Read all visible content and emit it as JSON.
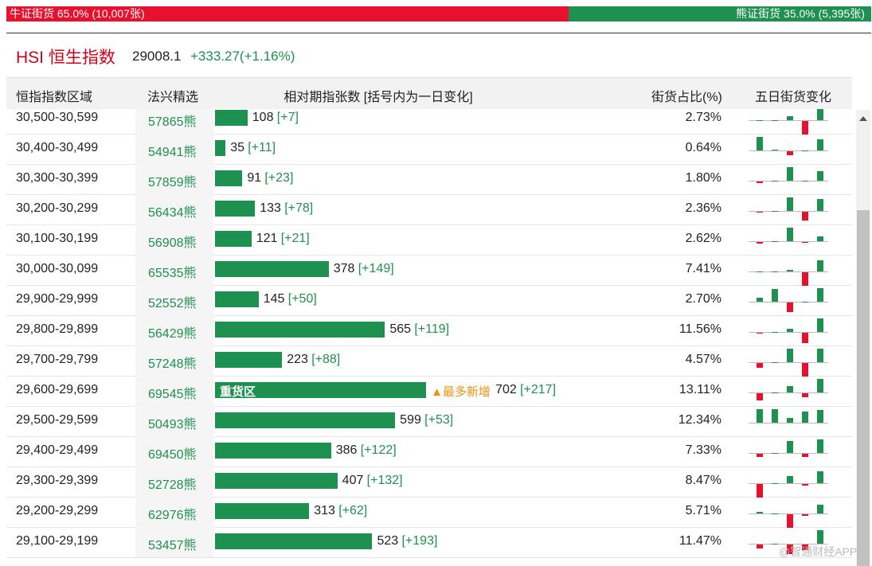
{
  "ratio_bar": {
    "bull": {
      "value": 65.0,
      "label": "牛证街货 65.0% (10,007张)"
    },
    "bear": {
      "value": 35.0,
      "label": "熊证街货 35.0% (5,395张)"
    }
  },
  "index": {
    "name": "HSI 恒生指数",
    "price": "29008.1",
    "change": "+333.27(+1.16%)"
  },
  "table": {
    "headers": [
      "恒指指数区域",
      "法兴精选",
      "相对期指张数 [括号内为一日变化]",
      "街货占比(%)",
      "五日街货变化"
    ],
    "bar_max": 750,
    "rows": [
      {
        "range": "30,500-30,599",
        "pick": "57865熊",
        "count": 108,
        "change": {
          "value": 7,
          "label": "[+7]"
        },
        "share": {
          "value": 2.73,
          "label": "2.73%"
        },
        "trend": [
          0,
          0,
          2,
          -7,
          7
        ]
      },
      {
        "range": "30,400-30,499",
        "pick": "54941熊",
        "count": 35,
        "change": {
          "value": 11,
          "label": "[+11]"
        },
        "share": {
          "value": 0.64,
          "label": "0.64%"
        },
        "trend": [
          13,
          1,
          -4,
          0,
          11
        ]
      },
      {
        "range": "30,300-30,399",
        "pick": "57859熊",
        "count": 91,
        "change": {
          "value": 23,
          "label": "[+23]"
        },
        "share": {
          "value": 1.8,
          "label": "1.80%"
        },
        "trend": [
          -3,
          0,
          33,
          0,
          23
        ]
      },
      {
        "range": "30,200-30,299",
        "pick": "56434熊",
        "count": 133,
        "change": {
          "value": 78,
          "label": "[+78]"
        },
        "share": {
          "value": 2.36,
          "label": "2.36%"
        },
        "trend": [
          -4,
          0,
          89,
          -56,
          78
        ]
      },
      {
        "range": "30,100-30,199",
        "pick": "56908熊",
        "count": 121,
        "change": {
          "value": 21,
          "label": "[+21]"
        },
        "share": {
          "value": 2.62,
          "label": "2.62%"
        },
        "trend": [
          -7,
          0,
          56,
          -4,
          21
        ]
      },
      {
        "range": "30,000-30,099",
        "pick": "65535熊",
        "count": 378,
        "change": {
          "value": 149,
          "label": "[+149]"
        },
        "share": {
          "value": 7.41,
          "label": "7.41%"
        },
        "trend": [
          4,
          0,
          26,
          -180,
          149
        ]
      },
      {
        "range": "29,900-29,999",
        "pick": "52552熊",
        "count": 145,
        "change": {
          "value": 50,
          "label": "[+50]"
        },
        "share": {
          "value": 2.7,
          "label": "2.70%"
        },
        "trend": [
          15,
          48,
          -34,
          0,
          50
        ]
      },
      {
        "range": "29,800-29,899",
        "pick": "56429熊",
        "count": 565,
        "change": {
          "value": 119,
          "label": "[+119]"
        },
        "share": {
          "value": 11.56,
          "label": "11.56%"
        },
        "trend": [
          -4,
          0,
          30,
          -92,
          119
        ]
      },
      {
        "range": "29,700-29,799",
        "pick": "57248熊",
        "count": 223,
        "change": {
          "value": 88,
          "label": "[+88]"
        },
        "share": {
          "value": 4.57,
          "label": "4.57%"
        },
        "trend": [
          -30,
          0,
          88,
          -88,
          88
        ]
      },
      {
        "range": "29,600-29,699",
        "pick": "69545熊",
        "count": 702,
        "change": {
          "value": 217,
          "label": "[+217]"
        },
        "share": {
          "value": 13.11,
          "label": "13.11%"
        },
        "trend": [
          -120,
          0,
          100,
          -60,
          217
        ],
        "zone": "重货区",
        "note": "▲最多新增"
      },
      {
        "range": "29,500-29,599",
        "pick": "50493熊",
        "count": 599,
        "change": {
          "value": 53,
          "label": "[+53]"
        },
        "share": {
          "value": 12.34,
          "label": "12.34%"
        },
        "trend": [
          55,
          55,
          18,
          45,
          53
        ]
      },
      {
        "range": "29,400-29,499",
        "pick": "69450熊",
        "count": 386,
        "change": {
          "value": 122,
          "label": "[+122]"
        },
        "share": {
          "value": 7.33,
          "label": "7.33%"
        },
        "trend": [
          -30,
          0,
          110,
          -30,
          122
        ]
      },
      {
        "range": "29,300-29,399",
        "pick": "52728熊",
        "count": 407,
        "change": {
          "value": 132,
          "label": "[+132]"
        },
        "share": {
          "value": 8.47,
          "label": "8.47%"
        },
        "trend": [
          -150,
          0,
          80,
          -15,
          132
        ]
      },
      {
        "range": "29,200-29,299",
        "pick": "62976熊",
        "count": 313,
        "change": {
          "value": 62,
          "label": "[+62]"
        },
        "share": {
          "value": 5.71,
          "label": "5.71%"
        },
        "trend": [
          10,
          0,
          -100,
          -10,
          62
        ]
      },
      {
        "range": "29,100-29,199",
        "pick": "53457熊",
        "count": 523,
        "change": {
          "value": 193,
          "label": "[+193]"
        },
        "share": {
          "value": 11.47,
          "label": "11.47%"
        },
        "trend": [
          -60,
          0,
          -140,
          -80,
          193
        ]
      }
    ]
  },
  "watermark": "@智通财经APP"
}
